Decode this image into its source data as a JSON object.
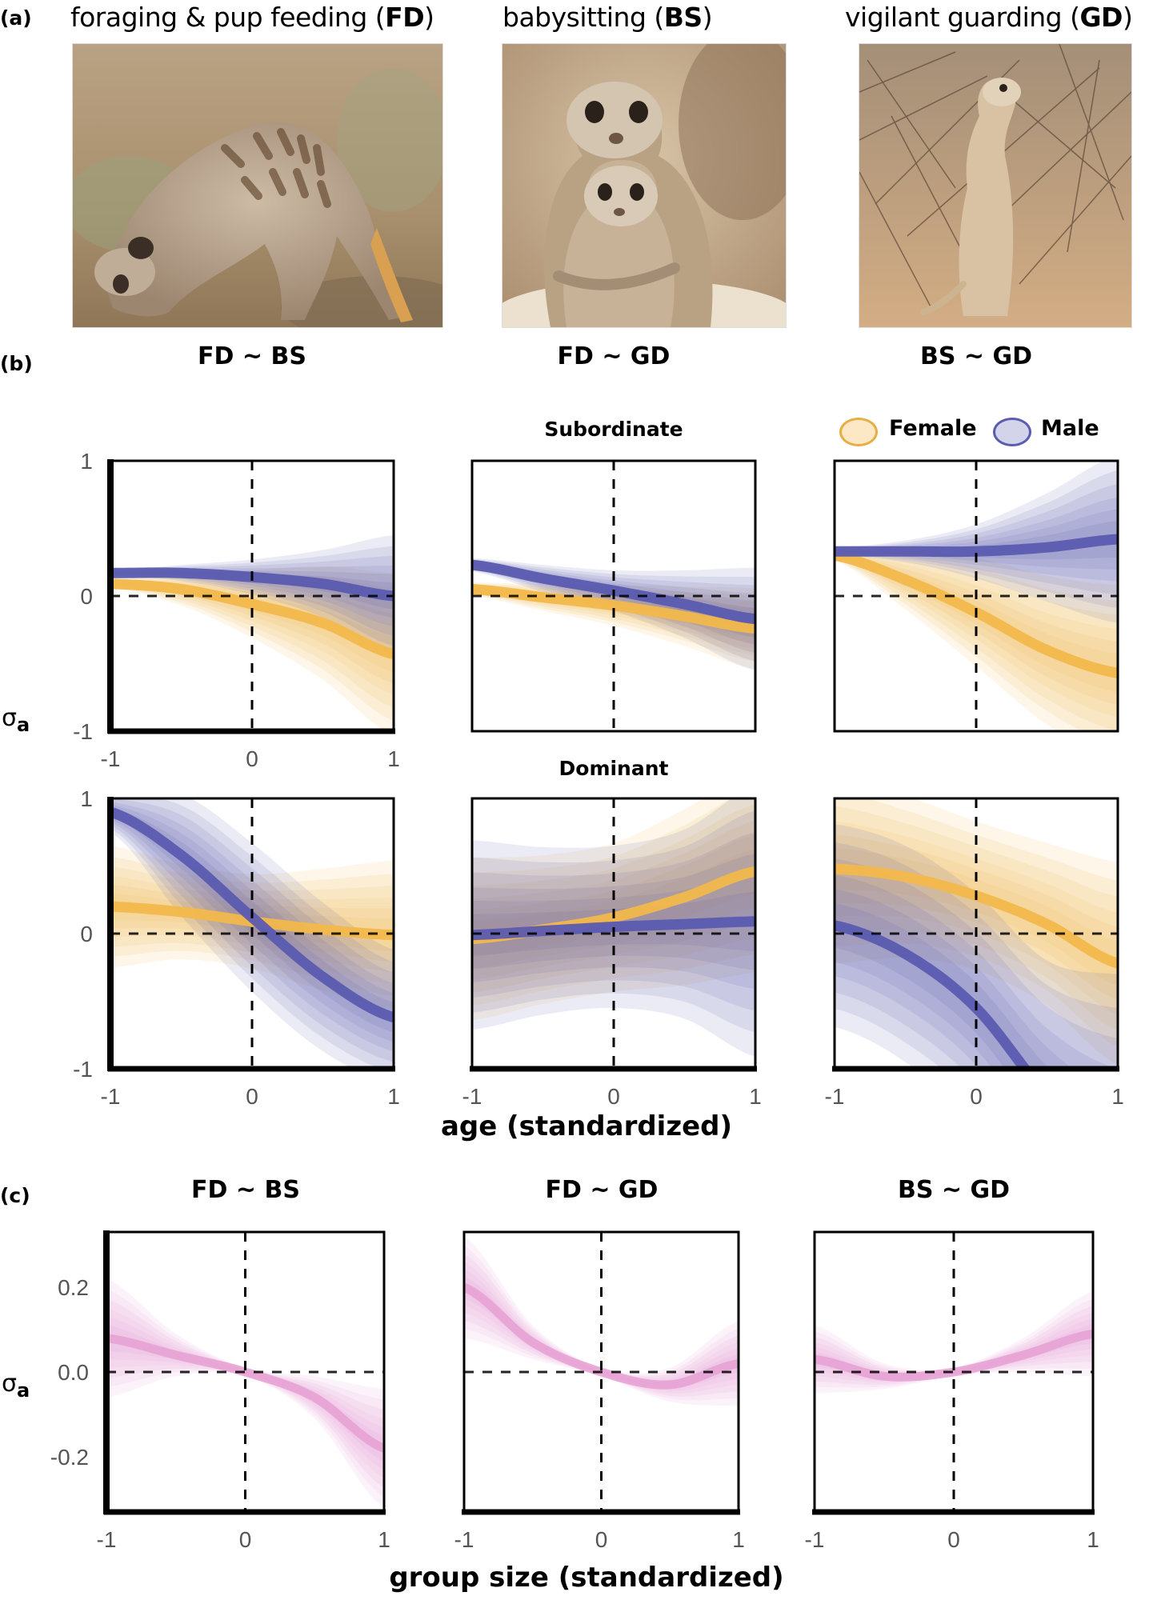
{
  "panel_a": {
    "label": "(a)",
    "photos": [
      {
        "title_prefix": "foraging & pup feeding (",
        "abbr": "FD",
        "title_suffix": ")",
        "subject": "meerkat-foraging-photo"
      },
      {
        "title_prefix": "babysitting (",
        "abbr": "BS",
        "title_suffix": ")",
        "subject": "meerkat-babysitting-photo"
      },
      {
        "title_prefix": "vigilant guarding (",
        "abbr": "GD",
        "title_suffix": ")",
        "subject": "meerkat-guarding-photo"
      }
    ]
  },
  "panel_b": {
    "label": "(b)",
    "column_titles": [
      "FD ~ BS",
      "FD ~ GD",
      "BS ~ GD"
    ],
    "row_titles": [
      "Subordinate",
      "Dominant"
    ],
    "y_label": "σ",
    "y_label_sub": "a",
    "x_label": "age (standardized)",
    "legend": [
      {
        "label": "Female",
        "color": "#f2b84b"
      },
      {
        "label": "Male",
        "color": "#5b5bb0"
      }
    ]
  },
  "panel_c": {
    "label": "(c)",
    "column_titles": [
      "FD ~ BS",
      "FD ~ GD",
      "BS ~ GD"
    ],
    "y_label": "σ",
    "y_label_sub": "a",
    "x_label": "group size (standardized)"
  },
  "colors": {
    "female": "#f2b84b",
    "male": "#5b5bb0",
    "group": "#e6a0d2",
    "axis": "#000000",
    "tick_text": "#555555"
  },
  "chart_data": [
    {
      "type": "line",
      "panel": "b",
      "row": "Subordinate",
      "title": "FD ~ BS",
      "xlabel": "age (standardized)",
      "ylabel": "σa",
      "xlim": [
        -1,
        1
      ],
      "ylim": [
        -1,
        1
      ],
      "xticks": [
        "-1",
        "0",
        "1"
      ],
      "yticks": [
        "1",
        "0",
        "-1"
      ],
      "reference_lines": {
        "x": 0,
        "y": 0
      },
      "x": [
        -1,
        -0.5,
        0,
        0.5,
        1
      ],
      "series": [
        {
          "name": "Female",
          "mean": [
            0.09,
            0.05,
            -0.06,
            -0.2,
            -0.43
          ],
          "band_halfwidth": [
            0.03,
            0.12,
            0.25,
            0.42,
            0.6
          ]
        },
        {
          "name": "Male",
          "mean": [
            0.17,
            0.17,
            0.14,
            0.09,
            0.0
          ],
          "band_halfwidth": [
            0.02,
            0.06,
            0.13,
            0.25,
            0.45
          ]
        }
      ]
    },
    {
      "type": "line",
      "panel": "b",
      "row": "Subordinate",
      "title": "FD ~ GD",
      "xlim": [
        -1,
        1
      ],
      "ylim": [
        -1,
        1
      ],
      "xticks": [],
      "yticks": [],
      "reference_lines": {
        "x": 0,
        "y": 0
      },
      "x": [
        -1,
        -0.5,
        0,
        0.5,
        1
      ],
      "series": [
        {
          "name": "Female",
          "mean": [
            0.05,
            -0.01,
            -0.07,
            -0.15,
            -0.24
          ],
          "band_halfwidth": [
            0.05,
            0.1,
            0.15,
            0.22,
            0.3
          ]
        },
        {
          "name": "Male",
          "mean": [
            0.23,
            0.13,
            0.04,
            -0.06,
            -0.17
          ],
          "band_halfwidth": [
            0.05,
            0.1,
            0.15,
            0.25,
            0.38
          ]
        }
      ]
    },
    {
      "type": "line",
      "panel": "b",
      "row": "Subordinate",
      "title": "BS ~ GD",
      "legend": "top-right",
      "xlim": [
        -1,
        1
      ],
      "ylim": [
        -1,
        1
      ],
      "xticks": [],
      "yticks": [],
      "reference_lines": {
        "x": 0,
        "y": 0
      },
      "x": [
        -1,
        -0.5,
        0,
        0.5,
        1
      ],
      "series": [
        {
          "name": "Female",
          "mean": [
            0.3,
            0.12,
            -0.12,
            -0.4,
            -0.57
          ],
          "band_halfwidth": [
            0.04,
            0.22,
            0.4,
            0.55,
            0.65
          ]
        },
        {
          "name": "Male",
          "mean": [
            0.33,
            0.33,
            0.33,
            0.36,
            0.42
          ],
          "band_halfwidth": [
            0.03,
            0.08,
            0.2,
            0.4,
            0.62
          ]
        }
      ]
    },
    {
      "type": "line",
      "panel": "b",
      "row": "Dominant",
      "title": "FD ~ BS",
      "xlim": [
        -1,
        1
      ],
      "ylim": [
        -1,
        1
      ],
      "xticks": [
        "-1",
        "0",
        "1"
      ],
      "yticks": [
        "1",
        "0",
        "-1"
      ],
      "reference_lines": {
        "x": 0,
        "y": 0
      },
      "x": [
        -1,
        -0.5,
        0,
        0.5,
        1
      ],
      "series": [
        {
          "name": "Female",
          "mean": [
            0.2,
            0.16,
            0.09,
            0.03,
            -0.01
          ],
          "band_halfwidth": [
            0.45,
            0.35,
            0.35,
            0.45,
            0.55
          ]
        },
        {
          "name": "Male",
          "mean": [
            0.9,
            0.58,
            0.12,
            -0.32,
            -0.62
          ],
          "band_halfwidth": [
            0.15,
            0.45,
            0.55,
            0.55,
            0.5
          ]
        }
      ]
    },
    {
      "type": "line",
      "panel": "b",
      "row": "Dominant",
      "title": "FD ~ GD",
      "xlim": [
        -1,
        1
      ],
      "ylim": [
        -1,
        1
      ],
      "xticks": [
        "-1",
        "0",
        "1"
      ],
      "yticks": [],
      "reference_lines": {
        "x": 0,
        "y": 0
      },
      "x": [
        -1,
        -0.5,
        0,
        0.5,
        1
      ],
      "series": [
        {
          "name": "Female",
          "mean": [
            -0.04,
            0.03,
            0.12,
            0.27,
            0.46
          ],
          "band_halfwidth": [
            0.6,
            0.55,
            0.55,
            0.65,
            0.75
          ]
        },
        {
          "name": "Male",
          "mean": [
            -0.01,
            0.02,
            0.05,
            0.07,
            0.09
          ],
          "band_halfwidth": [
            0.7,
            0.62,
            0.6,
            0.7,
            1.0
          ]
        }
      ]
    },
    {
      "type": "line",
      "panel": "b",
      "row": "Dominant",
      "title": "BS ~ GD",
      "xlim": [
        -1,
        1
      ],
      "ylim": [
        -1,
        1
      ],
      "xticks": [
        "-1",
        "0",
        "1"
      ],
      "yticks": [],
      "reference_lines": {
        "x": 0,
        "y": 0
      },
      "x": [
        -1,
        -0.5,
        0,
        0.5,
        1
      ],
      "series": [
        {
          "name": "Female",
          "mean": [
            0.48,
            0.42,
            0.28,
            0.07,
            -0.22
          ],
          "band_halfwidth": [
            0.7,
            0.6,
            0.55,
            0.6,
            0.75
          ]
        },
        {
          "name": "Male",
          "mean": [
            0.06,
            -0.15,
            -0.55,
            -1.2,
            -1.7
          ],
          "band_halfwidth": [
            0.75,
            0.8,
            0.85,
            1.0,
            1.4
          ]
        }
      ]
    },
    {
      "type": "line",
      "panel": "c",
      "title": "FD ~ BS",
      "xlabel": "group size (standardized)",
      "ylabel": "σa",
      "xlim": [
        -1,
        1
      ],
      "ylim": [
        -0.33,
        0.33
      ],
      "xticks": [
        "-1",
        "0",
        "1"
      ],
      "yticks": [
        "0.2",
        "0.0",
        "-0.2"
      ],
      "reference_lines": {
        "x": 0,
        "y": 0
      },
      "x": [
        -1,
        -0.5,
        0,
        0.5,
        1
      ],
      "series": [
        {
          "name": "Group size",
          "mean": [
            0.08,
            0.04,
            0.0,
            -0.06,
            -0.18
          ],
          "band_halfwidth": [
            0.14,
            0.05,
            0.01,
            0.05,
            0.14
          ]
        }
      ]
    },
    {
      "type": "line",
      "panel": "c",
      "title": "FD ~ GD",
      "xlim": [
        -1,
        1
      ],
      "ylim": [
        -0.33,
        0.33
      ],
      "xticks": [
        "-1",
        "0",
        "1"
      ],
      "yticks": [],
      "reference_lines": {
        "x": 0,
        "y": 0
      },
      "x": [
        -1,
        -0.5,
        0,
        0.5,
        1
      ],
      "series": [
        {
          "name": "Group size",
          "mean": [
            0.2,
            0.07,
            0.0,
            -0.03,
            0.02
          ],
          "band_halfwidth": [
            0.12,
            0.04,
            0.01,
            0.04,
            0.1
          ]
        }
      ]
    },
    {
      "type": "line",
      "panel": "c",
      "title": "BS ~ GD",
      "xlim": [
        -1,
        1
      ],
      "ylim": [
        -0.33,
        0.33
      ],
      "xticks": [
        "-1",
        "0",
        "1"
      ],
      "yticks": [],
      "reference_lines": {
        "x": 0,
        "y": 0
      },
      "x": [
        -1,
        -0.5,
        0,
        0.5,
        1
      ],
      "series": [
        {
          "name": "Group size",
          "mean": [
            0.03,
            -0.01,
            0.0,
            0.04,
            0.09
          ],
          "band_halfwidth": [
            0.08,
            0.03,
            0.01,
            0.04,
            0.1
          ]
        }
      ]
    }
  ]
}
